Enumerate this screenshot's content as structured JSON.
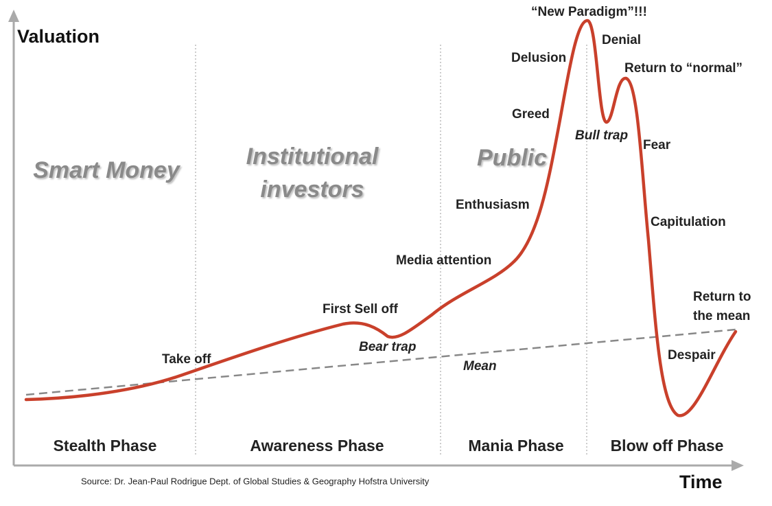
{
  "axes": {
    "y_label": "Valuation",
    "x_label": "Time"
  },
  "groups": [
    "Smart Money",
    "Institutional",
    "investors",
    "Public"
  ],
  "stages": {
    "take_off": "Take off",
    "first_sell_off": "First Sell off",
    "bear_trap": "Bear trap",
    "mean": "Mean",
    "media_attention": "Media attention",
    "enthusiasm": "Enthusiasm",
    "greed": "Greed",
    "delusion": "Delusion",
    "new_paradigm": "“New Paradigm”!!!",
    "denial": "Denial",
    "return_to_normal": "Return to “normal”",
    "bull_trap": "Bull trap",
    "fear": "Fear",
    "capitulation": "Capitulation",
    "despair": "Despair",
    "return_to_mean_1": "Return to",
    "return_to_mean_2": "the mean"
  },
  "phases": [
    "Stealth Phase",
    "Awareness Phase",
    "Mania Phase",
    "Blow off Phase"
  ],
  "source": "Source: Dr. Jean-Paul Rodrigue Dept. of Global Studies & Geography Hofstra University"
}
